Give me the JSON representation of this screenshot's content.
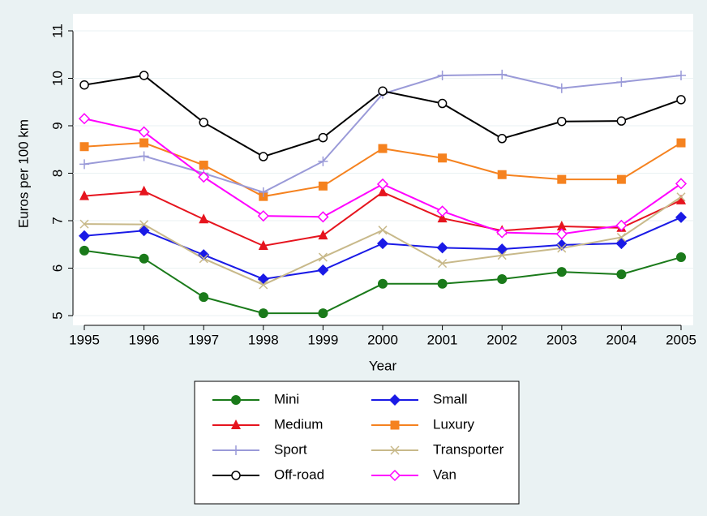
{
  "chart_data": {
    "type": "line",
    "y_label": "Euros per 100 km",
    "x_label": "Year",
    "x": [
      1995,
      1996,
      1997,
      1998,
      1999,
      2000,
      2001,
      2002,
      2003,
      2004,
      2005
    ],
    "xlim": [
      1995,
      2005
    ],
    "xticks": [
      1995,
      1996,
      1997,
      1998,
      1999,
      2000,
      2001,
      2002,
      2003,
      2004,
      2005
    ],
    "ylim": [
      5,
      11
    ],
    "yticks": [
      5,
      6,
      7,
      8,
      9,
      10,
      11
    ],
    "grid": true,
    "series": [
      {
        "name": "Mini",
        "color": "#1a7a1a",
        "marker": "circle",
        "values": [
          6.37,
          6.2,
          5.39,
          5.05,
          5.05,
          5.67,
          5.67,
          5.77,
          5.92,
          5.87,
          6.23
        ]
      },
      {
        "name": "Small",
        "color": "#1a1ae6",
        "marker": "diamond",
        "values": [
          6.68,
          6.79,
          6.28,
          5.77,
          5.96,
          6.52,
          6.43,
          6.4,
          6.49,
          6.52,
          7.07
        ]
      },
      {
        "name": "Medium",
        "color": "#e6141e",
        "marker": "triangle",
        "values": [
          7.52,
          7.62,
          7.03,
          6.47,
          6.69,
          7.6,
          7.05,
          6.79,
          6.88,
          6.85,
          7.43
        ]
      },
      {
        "name": "Luxury",
        "color": "#f5821f",
        "marker": "square",
        "values": [
          8.56,
          8.64,
          8.17,
          7.51,
          7.73,
          8.52,
          8.32,
          7.97,
          7.87,
          7.87,
          8.64
        ]
      },
      {
        "name": "Sport",
        "color": "#9a9ad8",
        "marker": "plus",
        "values": [
          8.19,
          8.36,
          8.0,
          7.6,
          8.25,
          9.67,
          10.06,
          10.08,
          9.79,
          9.92,
          10.06
        ]
      },
      {
        "name": "Transporter",
        "color": "#c8b98a",
        "marker": "x",
        "values": [
          6.93,
          6.92,
          6.2,
          5.65,
          6.23,
          6.8,
          6.1,
          6.27,
          6.42,
          6.65,
          7.5
        ]
      },
      {
        "name": "Off-road",
        "color": "#000000",
        "marker": "hollow-circle",
        "values": [
          9.86,
          10.06,
          9.07,
          8.35,
          8.75,
          9.73,
          9.47,
          8.73,
          9.09,
          9.1,
          9.55
        ]
      },
      {
        "name": "Van",
        "color": "#ff00ff",
        "marker": "hollow-diamond",
        "values": [
          9.15,
          8.87,
          7.92,
          7.1,
          7.08,
          7.77,
          7.2,
          6.75,
          6.72,
          6.9,
          7.78
        ]
      }
    ]
  }
}
